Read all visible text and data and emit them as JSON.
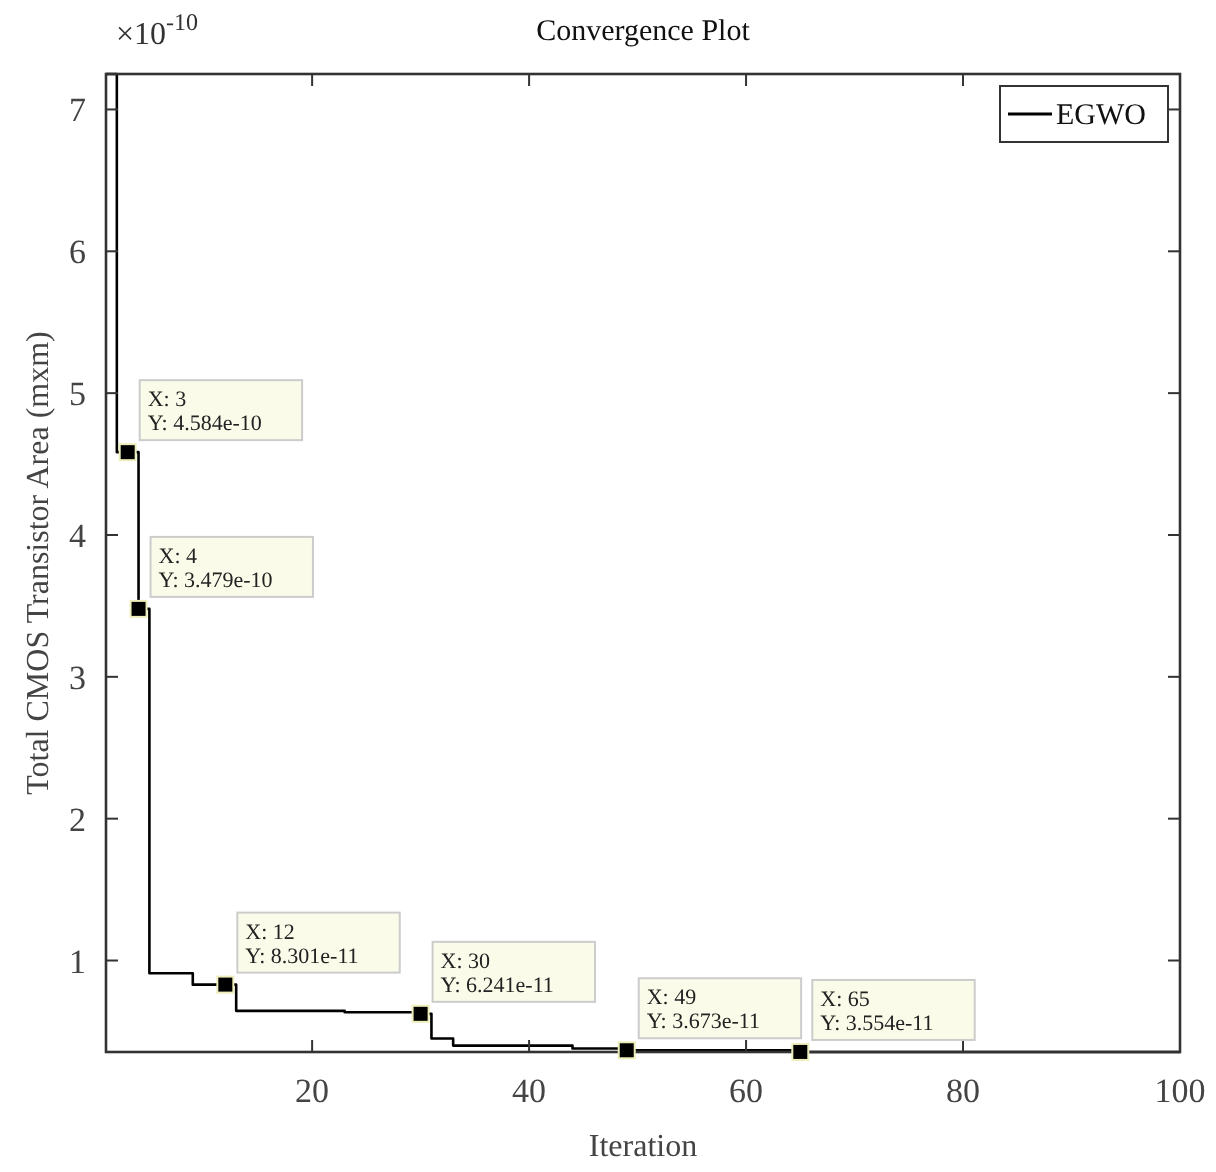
{
  "chart_data": {
    "type": "step",
    "title": "Convergence Plot",
    "xlabel": "Iteration",
    "ylabel": "Total CMOS Transistor Area (mxm)",
    "x": [
      1,
      2,
      3,
      4,
      5,
      9,
      12,
      13,
      23,
      30,
      31,
      33,
      44,
      49,
      65,
      100
    ],
    "series": [
      {
        "name": "EGWO",
        "color": "#000000",
        "values": [
          7.25,
          4.584,
          4.584,
          3.479,
          0.91,
          0.83,
          0.8301,
          0.645,
          0.635,
          0.6241,
          0.45,
          0.4,
          0.38,
          0.3673,
          0.3554,
          0.3554
        ]
      }
    ],
    "xlim": [
      1,
      100
    ],
    "ylim": [
      0.355,
      7.25
    ],
    "xticks": [
      20,
      40,
      60,
      80,
      100
    ],
    "yticks": [
      1,
      2,
      3,
      4,
      5,
      6,
      7
    ],
    "legend": "top right",
    "grid": false,
    "annotations": [
      "×10$^{-10}$",
      {
        "text": "X: 3\nY: 4.584e-10",
        "x": 3,
        "y": 4.584
      },
      {
        "text": "X: 4\nY: 3.479e-10",
        "x": 4,
        "y": 3.479
      },
      {
        "text": "X: 12\nY: 8.301e-11",
        "x": 12,
        "y": 0.8301
      },
      {
        "text": "X: 30\nY: 6.241e-11",
        "x": 30,
        "y": 0.6241
      },
      {
        "text": "X: 49\nY: 3.673e-11",
        "x": 49,
        "y": 0.3673
      },
      {
        "text": "X: 65\nY: 3.554e-11",
        "x": 65,
        "y": 0.3554
      }
    ]
  }
}
